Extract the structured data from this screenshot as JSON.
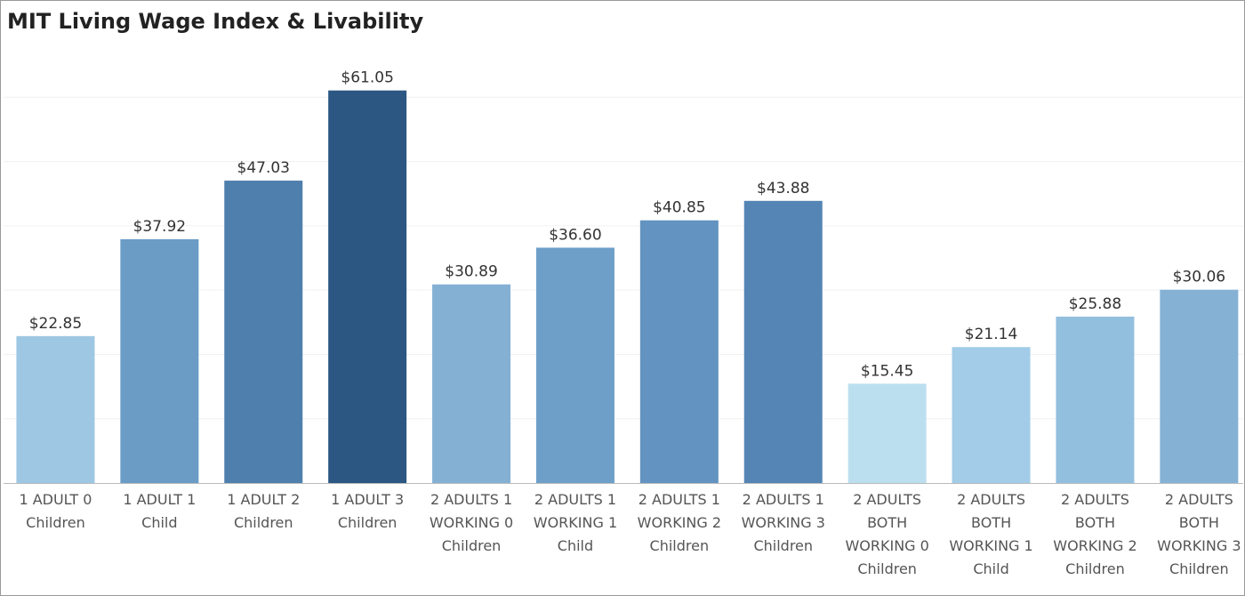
{
  "chart_data": {
    "type": "bar",
    "title": "MIT Living Wage Index & Livability",
    "categories": [
      [
        "1 ADULT 0",
        "Children"
      ],
      [
        "1 ADULT 1",
        "Child"
      ],
      [
        "1 ADULT 2",
        "Children"
      ],
      [
        "1 ADULT 3",
        "Children"
      ],
      [
        "2 ADULTS 1",
        "WORKING 0",
        "Children"
      ],
      [
        "2 ADULTS 1",
        "WORKING 1",
        "Child"
      ],
      [
        "2 ADULTS 1",
        "WORKING 2",
        "Children"
      ],
      [
        "2 ADULTS 1",
        "WORKING 3",
        "Children"
      ],
      [
        "2 ADULTS",
        "BOTH",
        "WORKING 0",
        "Children"
      ],
      [
        "2 ADULTS",
        "BOTH",
        "WORKING 1",
        "Child"
      ],
      [
        "2 ADULTS",
        "BOTH",
        "WORKING 2",
        "Children"
      ],
      [
        "2 ADULTS",
        "BOTH",
        "WORKING 3",
        "Children"
      ]
    ],
    "values": [
      22.85,
      37.92,
      47.03,
      61.05,
      30.89,
      36.6,
      40.85,
      43.88,
      15.45,
      21.14,
      25.88,
      30.06
    ],
    "value_labels": [
      "$22.85",
      "$37.92",
      "$47.03",
      "$61.05",
      "$30.89",
      "$36.60",
      "$40.85",
      "$43.88",
      "$15.45",
      "$21.14",
      "$25.88",
      "$30.06"
    ],
    "colors": [
      "#9dc7e3",
      "#6a9cc6",
      "#4f7fad",
      "#2c5783",
      "#84b0d4",
      "#6e9fc8",
      "#6393c0",
      "#5585b4",
      "#bcdff0",
      "#a2cce7",
      "#93bfdf",
      "#85b1d5"
    ],
    "ylim": [
      0,
      70
    ],
    "gridlines": [
      10,
      20,
      30,
      40,
      50,
      60
    ],
    "grid": true
  }
}
